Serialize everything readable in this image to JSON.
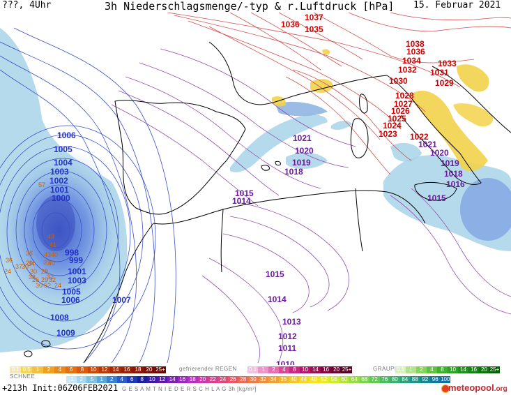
{
  "header": {
    "run_label": "???, 4Uhr",
    "title": "3h Niederschlagsmenge/-typ & r.Luftdruck [hPa]",
    "date": "15. Februar 2021"
  },
  "isobar_labels": [
    {
      "text": "1037",
      "color": "red"
    },
    {
      "text": "1036",
      "color": "red"
    },
    {
      "text": "1035",
      "color": "red"
    },
    {
      "text": "1038",
      "color": "red"
    },
    {
      "text": "1036",
      "color": "red"
    },
    {
      "text": "1034",
      "color": "red"
    },
    {
      "text": "1032",
      "color": "red"
    },
    {
      "text": "1030",
      "color": "red"
    },
    {
      "text": "1033",
      "color": "red"
    },
    {
      "text": "1031",
      "color": "red"
    },
    {
      "text": "1029",
      "color": "red"
    },
    {
      "text": "1028",
      "color": "red"
    },
    {
      "text": "1027",
      "color": "red"
    },
    {
      "text": "1026",
      "color": "red"
    },
    {
      "text": "1025",
      "color": "red"
    },
    {
      "text": "1024",
      "color": "red"
    },
    {
      "text": "1023",
      "color": "red"
    },
    {
      "text": "1022",
      "color": "red"
    },
    {
      "text": "1021",
      "color": "purple"
    },
    {
      "text": "1020",
      "color": "purple"
    },
    {
      "text": "1019",
      "color": "purple"
    },
    {
      "text": "1018",
      "color": "purple"
    },
    {
      "text": "1021",
      "color": "purple"
    },
    {
      "text": "1020",
      "color": "purple"
    },
    {
      "text": "1019",
      "color": "purple"
    },
    {
      "text": "1018",
      "color": "purple"
    },
    {
      "text": "1016",
      "color": "purple"
    },
    {
      "text": "1015",
      "color": "purple"
    },
    {
      "text": "1015",
      "color": "purple"
    },
    {
      "text": "1014",
      "color": "purple"
    },
    {
      "text": "1015",
      "color": "purple"
    },
    {
      "text": "1014",
      "color": "purple"
    },
    {
      "text": "1013",
      "color": "purple"
    },
    {
      "text": "1012",
      "color": "purple"
    },
    {
      "text": "1011",
      "color": "purple"
    },
    {
      "text": "1010",
      "color": "purple"
    },
    {
      "text": "1006",
      "color": "blue"
    },
    {
      "text": "1005",
      "color": "blue"
    },
    {
      "text": "1004",
      "color": "blue"
    },
    {
      "text": "1003",
      "color": "blue"
    },
    {
      "text": "1002",
      "color": "blue"
    },
    {
      "text": "1001",
      "color": "blue"
    },
    {
      "text": "1000",
      "color": "blue"
    },
    {
      "text": "998",
      "color": "blue"
    },
    {
      "text": "999",
      "color": "blue"
    },
    {
      "text": "1001",
      "color": "blue"
    },
    {
      "text": "1003",
      "color": "blue"
    },
    {
      "text": "1005",
      "color": "blue"
    },
    {
      "text": "1006",
      "color": "blue"
    },
    {
      "text": "1007",
      "color": "blue"
    },
    {
      "text": "1008",
      "color": "blue"
    },
    {
      "text": "1009",
      "color": "blue"
    }
  ],
  "snow_numbers": [
    "43",
    "41",
    "38",
    "43",
    "40",
    "33",
    "36",
    "29",
    "57",
    "34",
    "40",
    "37",
    "30",
    "24",
    "30",
    "28",
    "38",
    "32",
    "26",
    "29",
    "32",
    "30",
    "52",
    "24"
  ],
  "legend": {
    "schnee_label": "SCHNEE",
    "schnee_values": [
      "0.1",
      "0.5",
      "1",
      "2",
      "4",
      "6",
      "8",
      "10",
      "12",
      "14",
      "16",
      "18",
      "20",
      "25+"
    ],
    "regen_label": "gefrierender REGEN",
    "regen_values": [
      "0.1",
      "1",
      "2",
      "4",
      "8",
      "10",
      "14",
      "16",
      "20",
      "25+"
    ],
    "graupel_label": "GRAUPEL",
    "graupel_values": [
      "0.1",
      "1",
      "2",
      "4",
      "8",
      "10",
      "14",
      "16",
      "20",
      "25+"
    ],
    "total_label": "G E S A M T N I E D E R S C H L A G   3h   [kg/m²]",
    "total_values": [
      ".1",
      "2",
      ".5",
      "1",
      "2",
      "4",
      "6",
      "8",
      "10",
      "12",
      "14",
      "16",
      "18",
      "20",
      "22",
      "24",
      "26",
      "28",
      "30",
      "32",
      "34",
      "36",
      "40",
      "44",
      "48",
      "52",
      "56",
      "60",
      "64",
      "68",
      "72",
      "76",
      "80",
      "84",
      "88",
      "92",
      "96",
      "100"
    ],
    "total_colors": [
      "#c9e6f2",
      "#a8d6ea",
      "#7fbfdf",
      "#5aa6d6",
      "#3b7fd0",
      "#2a5cc9",
      "#1f3ab9",
      "#1a1fa0",
      "#3a1aa8",
      "#5a1ab0",
      "#7a20b8",
      "#9a28c0",
      "#b830c0",
      "#cc38a8",
      "#d8408e",
      "#e04a78",
      "#e65866",
      "#ea6a58",
      "#ee7c4a",
      "#f08e3e",
      "#f2a034",
      "#f4b22c",
      "#f5c426",
      "#f6d422",
      "#f4e222",
      "#e8ea26",
      "#d0ea2e",
      "#b4e438",
      "#98dc42",
      "#7cd44c",
      "#62ca56",
      "#4cbe62",
      "#3ab06e",
      "#2aa27a",
      "#1e9486",
      "#188690",
      "#14789a",
      "#1070a4"
    ]
  },
  "footer": {
    "init": "+213h Init:06Z06FEB2021",
    "brand": "meteopool",
    "brand_tld": ".org"
  },
  "colors": {
    "isobar_high": "#cc0000",
    "isobar_mid": "#6a1a9a",
    "isobar_low": "#2030c8",
    "rain_light": "#a8d4e8",
    "rain_heavy": "#4a70d0",
    "snow_yellow": "#f2d24a",
    "coast": "#000000"
  }
}
